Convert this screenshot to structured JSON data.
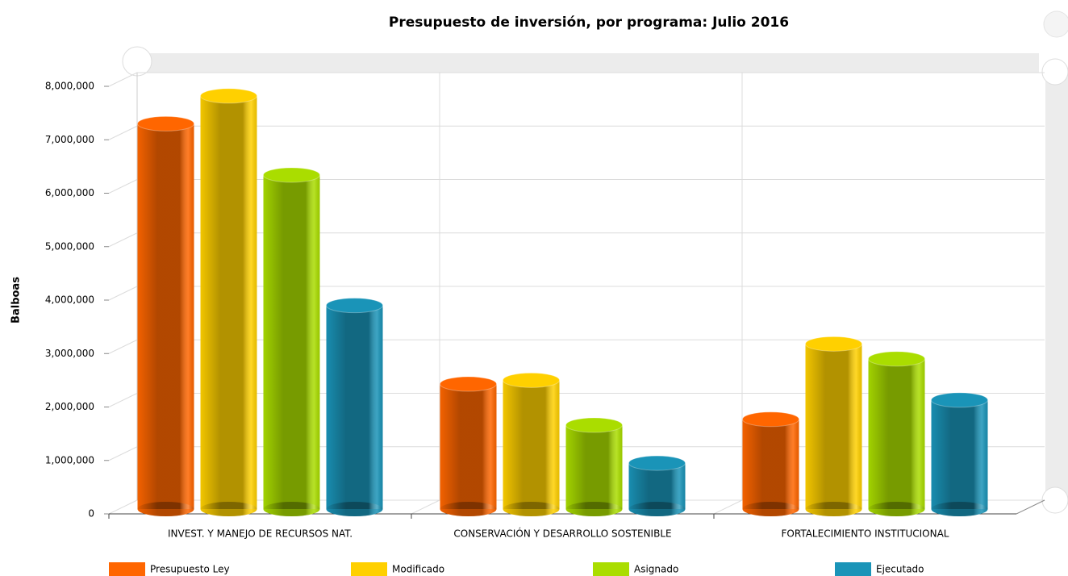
{
  "chart_data": {
    "type": "bar",
    "title": "Presupuesto de inversión, por programa: Julio 2016",
    "y_label": "Balboas",
    "categories": [
      "INVEST. Y MANEJO DE RECURSOS NAT.",
      "CONSERVACIÓN Y DESARROLLO SOSTENIBLE",
      "FORTALECIMIENTO INSTITUCIONAL"
    ],
    "series": [
      {
        "name": "Presupuesto Ley",
        "color": "#ff6600",
        "values": [
          7300000,
          2430000,
          1770000
        ]
      },
      {
        "name": "Modificado",
        "color": "#ffd000",
        "values": [
          7820000,
          2500000,
          3180000
        ]
      },
      {
        "name": "Asignado",
        "color": "#aadd00",
        "values": [
          6340000,
          1660000,
          2900000
        ]
      },
      {
        "name": "Ejecutado",
        "color": "#1a94b8",
        "values": [
          3900000,
          950000,
          2130000
        ]
      }
    ],
    "ylim": [
      0,
      8000000
    ],
    "yticks": [
      0,
      {
        "value": 1000000,
        "label": "1,000,000"
      },
      {
        "value": 2000000,
        "label": "2,000,000"
      },
      {
        "value": 3000000,
        "label": "3,000,000"
      },
      {
        "value": 4000000,
        "label": "4,000,000"
      },
      {
        "value": 5000000,
        "label": "5,000,000"
      },
      {
        "value": 6000000,
        "label": "6,000,000"
      },
      {
        "value": 7000000,
        "label": "7,000,000"
      },
      {
        "value": 8000000,
        "label": "8,000,000"
      }
    ],
    "grid": true
  }
}
